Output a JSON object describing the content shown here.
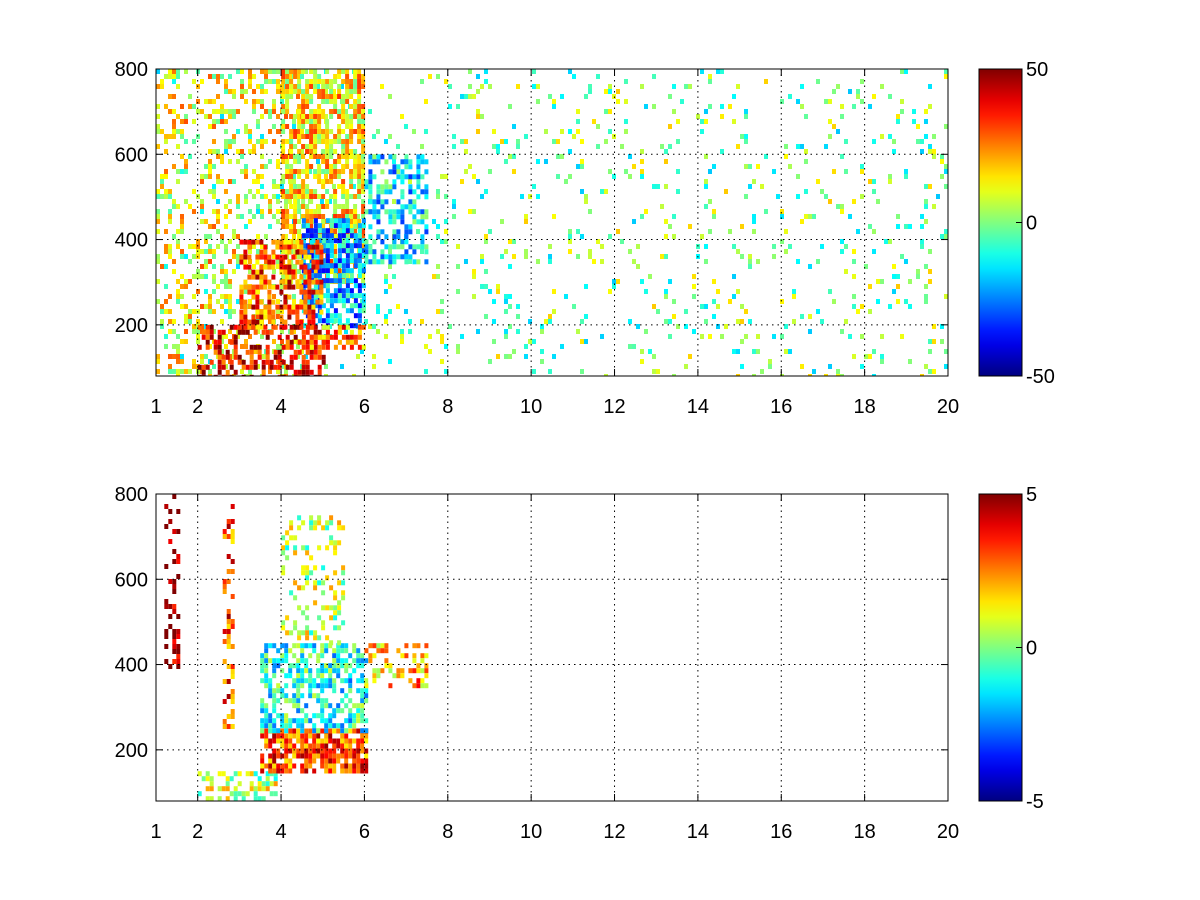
{
  "chart_data": [
    {
      "type": "heatmap",
      "title": "",
      "xlabel": "",
      "ylabel": "",
      "xlim": [
        1,
        20
      ],
      "ylim": [
        80,
        800
      ],
      "xticks": [
        1,
        2,
        4,
        6,
        8,
        10,
        12,
        14,
        16,
        18,
        20
      ],
      "yticks": [
        200,
        400,
        600,
        800
      ],
      "grid": true,
      "colormap": "jet",
      "colorbar": {
        "range": [
          -50,
          50
        ],
        "ticks": [
          50,
          0,
          -50
        ]
      },
      "regions": [
        {
          "desc": "scattered noise",
          "x": [
            1,
            20
          ],
          "y": [
            80,
            800
          ],
          "value": 0,
          "density": 0.08
        },
        {
          "x": [
            1,
            4.5
          ],
          "y": [
            80,
            800
          ],
          "value": 12,
          "density": 0.25
        },
        {
          "x": [
            4,
            6
          ],
          "y": [
            300,
            800
          ],
          "value": 15,
          "density": 0.7
        },
        {
          "x": [
            4.5,
            6
          ],
          "y": [
            200,
            450
          ],
          "value": -20,
          "density": 0.7
        },
        {
          "x": [
            6,
            7.5
          ],
          "y": [
            350,
            600
          ],
          "value": -15,
          "density": 0.5
        },
        {
          "x": [
            2,
            5
          ],
          "y": [
            80,
            200
          ],
          "value": 40,
          "density": 0.5
        },
        {
          "x": [
            3,
            5
          ],
          "y": [
            200,
            400
          ],
          "value": 30,
          "density": 0.6
        },
        {
          "x": [
            4.5,
            6
          ],
          "y": [
            150,
            200
          ],
          "value": 25,
          "density": 0.6
        }
      ]
    },
    {
      "type": "heatmap",
      "title": "",
      "xlabel": "",
      "ylabel": "",
      "xlim": [
        1,
        20
      ],
      "ylim": [
        80,
        800
      ],
      "xticks": [
        1,
        2,
        4,
        6,
        8,
        10,
        12,
        14,
        16,
        18,
        20
      ],
      "yticks": [
        200,
        400,
        600,
        800
      ],
      "grid": true,
      "colormap": "jet",
      "colorbar": {
        "range": [
          -5,
          5
        ],
        "ticks": [
          5,
          0,
          -5
        ]
      },
      "regions": [
        {
          "x": [
            2,
            4
          ],
          "y": [
            80,
            150
          ],
          "value": 0.5,
          "density": 0.5
        },
        {
          "x": [
            3.5,
            6
          ],
          "y": [
            150,
            250
          ],
          "value": 3,
          "density": 0.8
        },
        {
          "x": [
            3.5,
            6
          ],
          "y": [
            250,
            450
          ],
          "value": -1,
          "density": 0.6
        },
        {
          "x": [
            4,
            5.5
          ],
          "y": [
            450,
            750
          ],
          "value": 0.5,
          "density": 0.3
        },
        {
          "x": [
            6,
            7.5
          ],
          "y": [
            350,
            450
          ],
          "value": 2,
          "density": 0.4
        },
        {
          "x": [
            1.2,
            1.5
          ],
          "y": [
            400,
            800
          ],
          "value": 5,
          "density": 0.3
        },
        {
          "x": [
            2.6,
            2.8
          ],
          "y": [
            250,
            800
          ],
          "value": 3,
          "density": 0.4
        }
      ]
    }
  ]
}
